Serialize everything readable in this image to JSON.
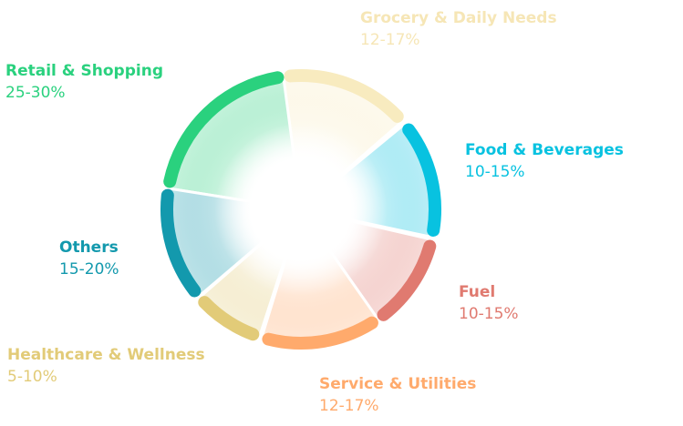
{
  "chart_data": {
    "type": "pie",
    "categories": [
      "Retail & Shopping",
      "Grocery & Daily Needs",
      "Food & Beverages",
      "Fuel",
      "Service & Utilities",
      "Healthcare & Wellness",
      "Others"
    ],
    "series": [
      {
        "ranges": [
          "25-30%",
          "12-17%",
          "10-15%",
          "10-15%",
          "12-17%",
          "5-10%",
          "15-20%"
        ]
      }
    ],
    "colors": [
      "#2ad17e",
      "#f8ebbf",
      "#08c2e0",
      "#e07a70",
      "#ffaa6c",
      "#e2cb78",
      "#1399ad"
    ]
  }
}
